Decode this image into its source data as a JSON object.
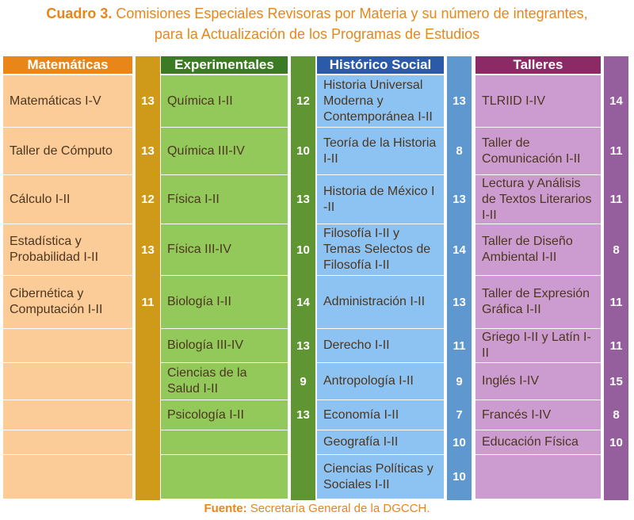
{
  "title": {
    "lead": "Cuadro 3.",
    "line1": "Comisiones Especiales Revisoras por Materia y su número de integrantes,",
    "line2": "para la Actualización de los Programas de Estudios"
  },
  "columns": [
    {
      "header": "Matemáticas",
      "header_color": "#e8861a",
      "cell_color": "#fbcc98",
      "num_color": "#cf9a1a",
      "rows": [
        {
          "name": "Matemáticas I-V",
          "count": "13"
        },
        {
          "name": "Taller de Cómputo",
          "count": "13"
        },
        {
          "name": "Cálculo I-II",
          "count": "12"
        },
        {
          "name": "Estadística y Probabilidad I-II",
          "count": "13"
        },
        {
          "name": "Cibernética y Computación I-II",
          "count": "11"
        },
        {
          "name": "",
          "count": ""
        },
        {
          "name": "",
          "count": ""
        },
        {
          "name": "",
          "count": ""
        },
        {
          "name": "",
          "count": ""
        },
        {
          "name": "",
          "count": ""
        }
      ]
    },
    {
      "header": "Experimentales",
      "header_color": "#3c7a24",
      "cell_color": "#93c95a",
      "num_color": "#609534",
      "rows": [
        {
          "name": "Química I-II",
          "count": "12"
        },
        {
          "name": "Química III-IV",
          "count": "10"
        },
        {
          "name": "Física I-II",
          "count": "13"
        },
        {
          "name": "Física III-IV",
          "count": "10"
        },
        {
          "name": "Biología I-II",
          "count": "14"
        },
        {
          "name": "Biología III-IV",
          "count": "13"
        },
        {
          "name": "Ciencias de la Salud I-II",
          "count": "9"
        },
        {
          "name": "Psicología I-II",
          "count": "13"
        },
        {
          "name": "",
          "count": ""
        },
        {
          "name": "",
          "count": ""
        }
      ]
    },
    {
      "header": "Histórico Social",
      "header_color": "#2a5aa8",
      "cell_color": "#8cc3f3",
      "num_color": "#5f97cf",
      "rows": [
        {
          "name": "Historia Universal Moderna y Contemporánea I-II",
          "count": "13"
        },
        {
          "name": "Teoría de la Historia I-II",
          "count": "8"
        },
        {
          "name": "Historia de México I -II",
          "count": "13"
        },
        {
          "name": "Filosofía I-II y Temas Selectos de Filosofía I-II",
          "count": "14"
        },
        {
          "name": "Administración I-II",
          "count": "13"
        },
        {
          "name": "Derecho I-II",
          "count": "11"
        },
        {
          "name": "Antropología I-II",
          "count": "9"
        },
        {
          "name": "Economía I-II",
          "count": "7"
        },
        {
          "name": "Geografía I-II",
          "count": "10"
        },
        {
          "name": "Ciencias Políticas y Sociales I-II",
          "count": "10"
        }
      ]
    },
    {
      "header": "Talleres",
      "header_color": "#8c2a66",
      "cell_color": "#cc9cd0",
      "num_color": "#955e9d",
      "rows": [
        {
          "name": "TLRIID I-IV",
          "count": "14"
        },
        {
          "name": "Taller de Comunicación I-II",
          "count": "11"
        },
        {
          "name": "Lectura y Análisis de Textos Literarios I-II",
          "count": "11"
        },
        {
          "name": "Taller de Diseño Ambiental I-II",
          "count": "8"
        },
        {
          "name": "Taller de Expresión Gráfica I-II",
          "count": "11"
        },
        {
          "name": "Griego I-II y Latín I-II",
          "count": "11"
        },
        {
          "name": "Inglés I-IV",
          "count": "15"
        },
        {
          "name": "Francés I-IV",
          "count": "8"
        },
        {
          "name": "Educación Física",
          "count": "10"
        },
        {
          "name": "",
          "count": ""
        }
      ]
    }
  ],
  "footer": {
    "label": "Fuente:",
    "text": "Secretaría General de la DGCCH."
  }
}
